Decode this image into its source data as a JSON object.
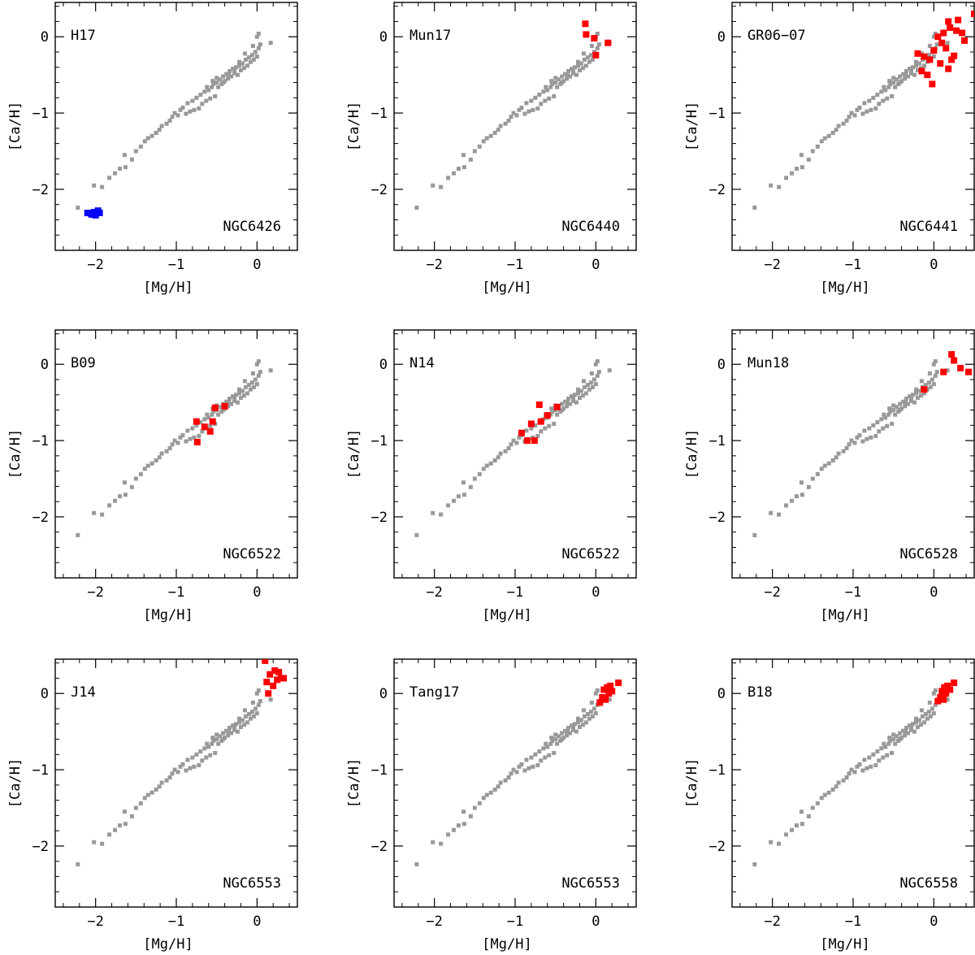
{
  "colors": {
    "background": "#1a2b3c",
    "muted": "#999999",
    "highlight_red": "#ff0000",
    "highlight_blue": "#0000ff"
  },
  "chart_data": [
    {
      "type": "scatter",
      "reference": "H17",
      "cluster": "NGC6426",
      "xlabel": "[Mg/H]",
      "ylabel": "[Ca/H]",
      "xlim": [
        -2.5,
        0.5
      ],
      "ylim": [
        -2.8,
        0.45
      ],
      "xticks": [
        "−2",
        "−1",
        "0"
      ],
      "yticks": [
        "0",
        "−1",
        "−2"
      ],
      "highlight_color": "#0000ff",
      "points": [
        [
          -2.1,
          -2.31
        ],
        [
          -2.05,
          -2.33
        ],
        [
          -2.02,
          -2.3
        ],
        [
          -2.0,
          -2.34
        ],
        [
          -1.97,
          -2.28
        ],
        [
          -1.95,
          -2.31
        ]
      ]
    },
    {
      "type": "scatter",
      "reference": "Mun17",
      "cluster": "NGC6440",
      "xlabel": "[Mg/H]",
      "ylabel": "[Ca/H]",
      "xlim": [
        -2.5,
        0.5
      ],
      "ylim": [
        -2.8,
        0.45
      ],
      "xticks": [
        "−2",
        "−1",
        "0"
      ],
      "yticks": [
        "0",
        "−1",
        "−2"
      ],
      "highlight_color": "#ff0000",
      "points": [
        [
          -0.13,
          0.17
        ],
        [
          -0.12,
          0.03
        ],
        [
          -0.02,
          -0.02
        ],
        [
          0.0,
          -0.24
        ],
        [
          0.15,
          -0.08
        ]
      ]
    },
    {
      "type": "scatter",
      "reference": "GR06−07",
      "cluster": "NGC6441",
      "xlabel": "[Mg/H]",
      "ylabel": "[Ca/H]",
      "xlim": [
        -2.5,
        0.5
      ],
      "ylim": [
        -2.8,
        0.45
      ],
      "xticks": [
        "−2",
        "−1",
        "0"
      ],
      "yticks": [
        "0",
        "−1",
        "−2"
      ],
      "highlight_color": "#ff0000",
      "points": [
        [
          -0.12,
          -0.26
        ],
        [
          -0.08,
          -0.5
        ],
        [
          0.0,
          -0.18
        ],
        [
          0.05,
          0.0
        ],
        [
          0.08,
          -0.35
        ],
        [
          0.1,
          -0.08
        ],
        [
          0.12,
          0.05
        ],
        [
          0.15,
          -0.15
        ],
        [
          0.18,
          -0.42
        ],
        [
          0.2,
          0.12
        ],
        [
          0.25,
          -0.25
        ],
        [
          0.28,
          0.08
        ],
        [
          0.3,
          0.22
        ],
        [
          0.35,
          0.05
        ],
        [
          0.38,
          -0.05
        ],
        [
          0.5,
          0.3
        ],
        [
          -0.15,
          -0.45
        ],
        [
          -0.05,
          -0.3
        ],
        [
          -0.2,
          -0.22
        ],
        [
          -0.02,
          -0.62
        ],
        [
          0.18,
          0.2
        ],
        [
          0.22,
          -0.3
        ]
      ]
    },
    {
      "type": "scatter",
      "reference": "B09",
      "cluster": "NGC6522",
      "xlabel": "[Mg/H]",
      "ylabel": "[Ca/H]",
      "xlim": [
        -2.5,
        0.5
      ],
      "ylim": [
        -2.8,
        0.45
      ],
      "xticks": [
        "−2",
        "−1",
        "0"
      ],
      "yticks": [
        "0",
        "−1",
        "−2"
      ],
      "highlight_color": "#ff0000",
      "points": [
        [
          -0.75,
          -0.75
        ],
        [
          -0.74,
          -1.02
        ],
        [
          -0.65,
          -0.82
        ],
        [
          -0.58,
          -0.88
        ],
        [
          -0.55,
          -0.75
        ],
        [
          -0.52,
          -0.57
        ],
        [
          -0.4,
          -0.55
        ]
      ]
    },
    {
      "type": "scatter",
      "reference": "N14",
      "cluster": "NGC6522",
      "xlabel": "[Mg/H]",
      "ylabel": "[Ca/H]",
      "xlim": [
        -2.5,
        0.5
      ],
      "ylim": [
        -2.8,
        0.45
      ],
      "xticks": [
        "−2",
        "−1",
        "0"
      ],
      "yticks": [
        "0",
        "−1",
        "−2"
      ],
      "highlight_color": "#ff0000",
      "points": [
        [
          -0.92,
          -0.9
        ],
        [
          -0.85,
          -1.0
        ],
        [
          -0.8,
          -0.78
        ],
        [
          -0.76,
          -1.0
        ],
        [
          -0.7,
          -0.53
        ],
        [
          -0.68,
          -0.75
        ],
        [
          -0.6,
          -0.67
        ],
        [
          -0.48,
          -0.56
        ]
      ]
    },
    {
      "type": "scatter",
      "reference": "Mun18",
      "cluster": "NGC6528",
      "xlabel": "[Mg/H]",
      "ylabel": "[Ca/H]",
      "xlim": [
        -2.5,
        0.5
      ],
      "ylim": [
        -2.8,
        0.45
      ],
      "xticks": [
        "−2",
        "−1",
        "0"
      ],
      "yticks": [
        "0",
        "−1",
        "−2"
      ],
      "highlight_color": "#ff0000",
      "points": [
        [
          -0.12,
          -0.33
        ],
        [
          0.12,
          -0.1
        ],
        [
          0.22,
          0.13
        ],
        [
          0.25,
          0.05
        ],
        [
          0.33,
          -0.05
        ],
        [
          0.43,
          -0.1
        ]
      ]
    },
    {
      "type": "scatter",
      "reference": "J14",
      "cluster": "NGC6553",
      "xlabel": "[Mg/H]",
      "ylabel": "[Ca/H]",
      "xlim": [
        -2.5,
        0.5
      ],
      "ylim": [
        -2.8,
        0.45
      ],
      "xticks": [
        "−2",
        "−1",
        "0"
      ],
      "yticks": [
        "0",
        "−1",
        "−2"
      ],
      "highlight_color": "#ff0000",
      "points": [
        [
          0.1,
          0.43
        ],
        [
          0.12,
          0.15
        ],
        [
          0.14,
          0.0
        ],
        [
          0.16,
          0.25
        ],
        [
          0.2,
          0.1
        ],
        [
          0.22,
          0.3
        ],
        [
          0.25,
          0.18
        ],
        [
          0.27,
          0.28
        ],
        [
          0.3,
          0.2
        ],
        [
          0.33,
          0.2
        ]
      ]
    },
    {
      "type": "scatter",
      "reference": "Tang17",
      "cluster": "NGC6553",
      "xlabel": "[Mg/H]",
      "ylabel": "[Ca/H]",
      "xlim": [
        -2.5,
        0.5
      ],
      "ylim": [
        -2.8,
        0.45
      ],
      "xticks": [
        "−2",
        "−1",
        "0"
      ],
      "yticks": [
        "0",
        "−1",
        "−2"
      ],
      "highlight_color": "#ff0000",
      "points": [
        [
          0.05,
          -0.12
        ],
        [
          0.08,
          -0.05
        ],
        [
          0.1,
          0.05
        ],
        [
          0.12,
          -0.08
        ],
        [
          0.14,
          0.08
        ],
        [
          0.16,
          0.0
        ],
        [
          0.18,
          0.1
        ],
        [
          0.2,
          0.03
        ],
        [
          0.28,
          0.14
        ]
      ]
    },
    {
      "type": "scatter",
      "reference": "B18",
      "cluster": "NGC6558",
      "xlabel": "[Mg/H]",
      "ylabel": "[Ca/H]",
      "xlim": [
        -2.5,
        0.5
      ],
      "ylim": [
        -2.8,
        0.45
      ],
      "xticks": [
        "−2",
        "−1",
        "0"
      ],
      "yticks": [
        "0",
        "−1",
        "−2"
      ],
      "highlight_color": "#ff0000",
      "points": [
        [
          0.05,
          -0.1
        ],
        [
          0.08,
          -0.05
        ],
        [
          0.1,
          0.03
        ],
        [
          0.12,
          -0.08
        ],
        [
          0.13,
          0.08
        ],
        [
          0.15,
          0.0
        ],
        [
          0.17,
          0.1
        ],
        [
          0.2,
          0.05
        ],
        [
          0.25,
          0.14
        ]
      ]
    }
  ],
  "background_points": [
    [
      -2.22,
      -2.24
    ],
    [
      -2.02,
      -1.95
    ],
    [
      -1.92,
      -1.97
    ],
    [
      -1.83,
      -1.85
    ],
    [
      -1.76,
      -1.79
    ],
    [
      -1.7,
      -1.73
    ],
    [
      -1.64,
      -1.55
    ],
    [
      -1.63,
      -1.71
    ],
    [
      -1.55,
      -1.61
    ],
    [
      -1.5,
      -1.5
    ],
    [
      -1.44,
      -1.44
    ],
    [
      -1.39,
      -1.37
    ],
    [
      -1.35,
      -1.33
    ],
    [
      -1.3,
      -1.3
    ],
    [
      -1.25,
      -1.26
    ],
    [
      -1.21,
      -1.22
    ],
    [
      -1.18,
      -1.17
    ],
    [
      -1.12,
      -1.14
    ],
    [
      -1.08,
      -1.1
    ],
    [
      -1.05,
      -1.05
    ],
    [
      -1.02,
      -1.0
    ],
    [
      -0.98,
      -1.03
    ],
    [
      -0.95,
      -0.96
    ],
    [
      -0.92,
      -0.93
    ],
    [
      -0.88,
      -1.01
    ],
    [
      -0.86,
      -0.87
    ],
    [
      -0.83,
      -0.98
    ],
    [
      -0.8,
      -0.84
    ],
    [
      -0.78,
      -0.96
    ],
    [
      -0.75,
      -0.8
    ],
    [
      -0.72,
      -0.94
    ],
    [
      -0.7,
      -0.76
    ],
    [
      -0.68,
      -0.88
    ],
    [
      -0.65,
      -0.72
    ],
    [
      -0.63,
      -0.84
    ],
    [
      -0.6,
      -0.7
    ],
    [
      -0.58,
      -0.81
    ],
    [
      -0.56,
      -0.66
    ],
    [
      -0.54,
      -0.62
    ],
    [
      -0.52,
      -0.78
    ],
    [
      -0.5,
      -0.6
    ],
    [
      -0.48,
      -0.66
    ],
    [
      -0.46,
      -0.56
    ],
    [
      -0.44,
      -0.62
    ],
    [
      -0.42,
      -0.52
    ],
    [
      -0.4,
      -0.58
    ],
    [
      -0.38,
      -0.49
    ],
    [
      -0.36,
      -0.55
    ],
    [
      -0.34,
      -0.45
    ],
    [
      -0.32,
      -0.52
    ],
    [
      -0.3,
      -0.42
    ],
    [
      -0.28,
      -0.48
    ],
    [
      -0.26,
      -0.4
    ],
    [
      -0.24,
      -0.5
    ],
    [
      -0.22,
      -0.38
    ],
    [
      -0.2,
      -0.44
    ],
    [
      -0.18,
      -0.35
    ],
    [
      -0.16,
      -0.41
    ],
    [
      -0.14,
      -0.3
    ],
    [
      -0.12,
      -0.38
    ],
    [
      -0.1,
      -0.27
    ],
    [
      -0.08,
      -0.33
    ],
    [
      -0.06,
      -0.24
    ],
    [
      -0.04,
      -0.3
    ],
    [
      -0.02,
      -0.2
    ],
    [
      0.0,
      -0.26
    ],
    [
      0.02,
      -0.15
    ],
    [
      0.04,
      -0.1
    ],
    [
      -0.05,
      -0.12
    ],
    [
      0.0,
      0.0
    ],
    [
      0.02,
      0.04
    ],
    [
      0.17,
      -0.08
    ],
    [
      -0.28,
      -0.44
    ],
    [
      -0.35,
      -0.5
    ],
    [
      -0.42,
      -0.6
    ],
    [
      -0.22,
      -0.33
    ],
    [
      -0.5,
      -0.54
    ],
    [
      -0.55,
      -0.58
    ],
    [
      -0.62,
      -0.66
    ],
    [
      -0.15,
      -0.22
    ]
  ]
}
